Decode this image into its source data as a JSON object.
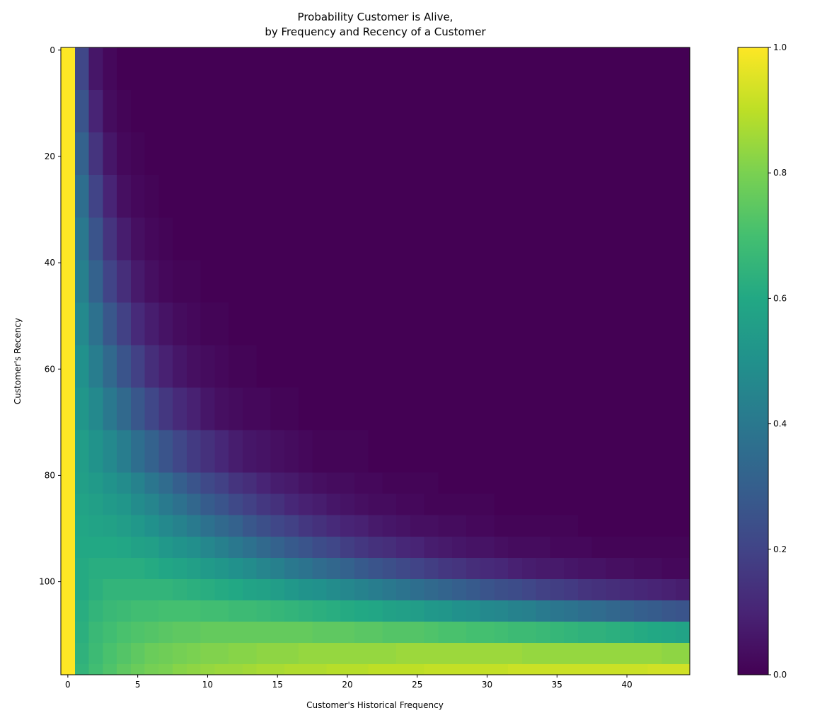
{
  "chart_data": {
    "type": "heatmap",
    "title": "Probability Customer is Alive,\nby Frequency and Recency of a Customer",
    "x_label": "Customer's Historical Frequency",
    "y_label": "Customer's Recency",
    "x": [
      0,
      1,
      2,
      3,
      4,
      5,
      6,
      7,
      8,
      9,
      10,
      11,
      12,
      13,
      14,
      15,
      16,
      17,
      18,
      19,
      20,
      21,
      22,
      23,
      24,
      25,
      26,
      27,
      28,
      29,
      30,
      31,
      32,
      33,
      34,
      35,
      36,
      37,
      38,
      39,
      40,
      41,
      42,
      43,
      44
    ],
    "y_bins": [
      -0.5,
      7.5,
      15.5,
      23.5,
      31.5,
      39.5,
      47.5,
      55.5,
      63.5,
      71.5,
      79.5,
      83.5,
      87.5,
      91.5,
      95.5,
      99.5,
      103.5,
      107.5,
      111.5,
      115.5,
      117.5
    ],
    "xlim": [
      -0.5,
      44.5
    ],
    "ylim": [
      -0.5,
      117.5
    ],
    "y_inverted": true,
    "xticks": [
      0,
      5,
      10,
      15,
      20,
      25,
      30,
      35,
      40
    ],
    "yticks": [
      0,
      20,
      40,
      60,
      80,
      100
    ],
    "colormap": [
      "#440154",
      "#482475",
      "#414487",
      "#355f8d",
      "#2a788e",
      "#21918c",
      "#22a884",
      "#44bf70",
      "#7ad151",
      "#bddf26",
      "#fde725"
    ],
    "colorbar": {
      "lim": [
        0,
        1
      ],
      "ticks": [
        {
          "value": 0,
          "label": "0.0"
        },
        {
          "value": 0.2,
          "label": "0.2"
        },
        {
          "value": 0.4,
          "label": "0.4"
        },
        {
          "value": 0.6,
          "label": "0.6"
        },
        {
          "value": 0.8,
          "label": "0.8"
        },
        {
          "value": 1,
          "label": "1.0"
        }
      ]
    },
    "values": [
      [
        1,
        0.21,
        0.06,
        0.02,
        0,
        0,
        0,
        0,
        0,
        0,
        0,
        0,
        0,
        0,
        0,
        0,
        0,
        0,
        0,
        0,
        0,
        0,
        0,
        0,
        0,
        0,
        0,
        0,
        0,
        0,
        0,
        0,
        0,
        0,
        0,
        0,
        0,
        0,
        0,
        0,
        0,
        0,
        0,
        0,
        0
      ],
      [
        1,
        0.26,
        0.1,
        0.03,
        0.01,
        0,
        0,
        0,
        0,
        0,
        0,
        0,
        0,
        0,
        0,
        0,
        0,
        0,
        0,
        0,
        0,
        0,
        0,
        0,
        0,
        0,
        0,
        0,
        0,
        0,
        0,
        0,
        0,
        0,
        0,
        0,
        0,
        0,
        0,
        0,
        0,
        0,
        0,
        0,
        0
      ],
      [
        1,
        0.31,
        0.15,
        0.06,
        0.02,
        0.01,
        0,
        0,
        0,
        0,
        0,
        0,
        0,
        0,
        0,
        0,
        0,
        0,
        0,
        0,
        0,
        0,
        0,
        0,
        0,
        0,
        0,
        0,
        0,
        0,
        0,
        0,
        0,
        0,
        0,
        0,
        0,
        0,
        0,
        0,
        0,
        0,
        0,
        0,
        0
      ],
      [
        1,
        0.36,
        0.2,
        0.1,
        0.04,
        0.02,
        0.01,
        0,
        0,
        0,
        0,
        0,
        0,
        0,
        0,
        0,
        0,
        0,
        0,
        0,
        0,
        0,
        0,
        0,
        0,
        0,
        0,
        0,
        0,
        0,
        0,
        0,
        0,
        0,
        0,
        0,
        0,
        0,
        0,
        0,
        0,
        0,
        0,
        0,
        0
      ],
      [
        1,
        0.4,
        0.26,
        0.15,
        0.08,
        0.04,
        0.02,
        0.01,
        0,
        0,
        0,
        0,
        0,
        0,
        0,
        0,
        0,
        0,
        0,
        0,
        0,
        0,
        0,
        0,
        0,
        0,
        0,
        0,
        0,
        0,
        0,
        0,
        0,
        0,
        0,
        0,
        0,
        0,
        0,
        0,
        0,
        0,
        0,
        0,
        0
      ],
      [
        1,
        0.43,
        0.31,
        0.2,
        0.13,
        0.07,
        0.04,
        0.02,
        0.01,
        0.01,
        0,
        0,
        0,
        0,
        0,
        0,
        0,
        0,
        0,
        0,
        0,
        0,
        0,
        0,
        0,
        0,
        0,
        0,
        0,
        0,
        0,
        0,
        0,
        0,
        0,
        0,
        0,
        0,
        0,
        0,
        0,
        0,
        0,
        0,
        0
      ],
      [
        1,
        0.47,
        0.37,
        0.27,
        0.19,
        0.12,
        0.08,
        0.05,
        0.03,
        0.02,
        0.01,
        0.01,
        0,
        0,
        0,
        0,
        0,
        0,
        0,
        0,
        0,
        0,
        0,
        0,
        0,
        0,
        0,
        0,
        0,
        0,
        0,
        0,
        0,
        0,
        0,
        0,
        0,
        0,
        0,
        0,
        0,
        0,
        0,
        0,
        0
      ],
      [
        1,
        0.5,
        0.42,
        0.34,
        0.26,
        0.19,
        0.13,
        0.09,
        0.06,
        0.04,
        0.03,
        0.02,
        0.01,
        0.01,
        0,
        0,
        0,
        0,
        0,
        0,
        0,
        0,
        0,
        0,
        0,
        0,
        0,
        0,
        0,
        0,
        0,
        0,
        0,
        0,
        0,
        0,
        0,
        0,
        0,
        0,
        0,
        0,
        0,
        0,
        0
      ],
      [
        1,
        0.52,
        0.47,
        0.4,
        0.34,
        0.27,
        0.21,
        0.16,
        0.12,
        0.09,
        0.06,
        0.04,
        0.03,
        0.02,
        0.02,
        0.01,
        0.01,
        0,
        0,
        0,
        0,
        0,
        0,
        0,
        0,
        0,
        0,
        0,
        0,
        0,
        0,
        0,
        0,
        0,
        0,
        0,
        0,
        0,
        0,
        0,
        0,
        0,
        0,
        0,
        0
      ],
      [
        1,
        0.55,
        0.51,
        0.47,
        0.42,
        0.36,
        0.31,
        0.26,
        0.21,
        0.17,
        0.14,
        0.11,
        0.08,
        0.06,
        0.05,
        0.04,
        0.03,
        0.02,
        0.01,
        0.01,
        0.01,
        0.01,
        0,
        0,
        0,
        0,
        0,
        0,
        0,
        0,
        0,
        0,
        0,
        0,
        0,
        0,
        0,
        0,
        0,
        0,
        0,
        0,
        0,
        0,
        0
      ],
      [
        1,
        0.56,
        0.54,
        0.51,
        0.48,
        0.44,
        0.39,
        0.35,
        0.3,
        0.26,
        0.22,
        0.19,
        0.15,
        0.13,
        0.1,
        0.08,
        0.07,
        0.05,
        0.04,
        0.03,
        0.03,
        0.02,
        0.02,
        0.01,
        0.01,
        0.01,
        0.01,
        0,
        0,
        0,
        0,
        0,
        0,
        0,
        0,
        0,
        0,
        0,
        0,
        0,
        0,
        0,
        0,
        0,
        0
      ],
      [
        1,
        0.58,
        0.56,
        0.54,
        0.52,
        0.48,
        0.45,
        0.41,
        0.37,
        0.33,
        0.29,
        0.26,
        0.22,
        0.19,
        0.16,
        0.14,
        0.11,
        0.09,
        0.08,
        0.06,
        0.05,
        0.04,
        0.03,
        0.03,
        0.02,
        0.02,
        0.01,
        0.01,
        0.01,
        0.01,
        0.01,
        0,
        0,
        0,
        0,
        0,
        0,
        0,
        0,
        0,
        0,
        0,
        0,
        0,
        0
      ],
      [
        1,
        0.59,
        0.58,
        0.57,
        0.55,
        0.53,
        0.5,
        0.47,
        0.44,
        0.41,
        0.37,
        0.34,
        0.31,
        0.27,
        0.24,
        0.21,
        0.19,
        0.16,
        0.14,
        0.12,
        0.1,
        0.09,
        0.07,
        0.06,
        0.05,
        0.04,
        0.04,
        0.03,
        0.03,
        0.02,
        0.02,
        0.01,
        0.01,
        0.01,
        0.01,
        0.01,
        0.01,
        0,
        0,
        0,
        0,
        0,
        0,
        0,
        0
      ],
      [
        1,
        0.6,
        0.6,
        0.6,
        0.59,
        0.57,
        0.56,
        0.53,
        0.51,
        0.49,
        0.46,
        0.43,
        0.4,
        0.37,
        0.34,
        0.31,
        0.28,
        0.26,
        0.23,
        0.21,
        0.18,
        0.16,
        0.14,
        0.13,
        0.11,
        0.1,
        0.08,
        0.07,
        0.06,
        0.05,
        0.05,
        0.04,
        0.03,
        0.03,
        0.03,
        0.02,
        0.02,
        0.02,
        0.01,
        0.01,
        0.01,
        0.01,
        0.01,
        0.01,
        0.01
      ],
      [
        1,
        0.61,
        0.62,
        0.62,
        0.62,
        0.62,
        0.61,
        0.59,
        0.58,
        0.56,
        0.54,
        0.52,
        0.5,
        0.48,
        0.45,
        0.43,
        0.4,
        0.38,
        0.35,
        0.33,
        0.31,
        0.28,
        0.26,
        0.24,
        0.22,
        0.2,
        0.18,
        0.16,
        0.15,
        0.13,
        0.12,
        0.11,
        0.09,
        0.08,
        0.07,
        0.07,
        0.06,
        0.05,
        0.05,
        0.04,
        0.04,
        0.03,
        0.03,
        0.02,
        0.02
      ],
      [
        1,
        0.61,
        0.63,
        0.65,
        0.65,
        0.65,
        0.65,
        0.65,
        0.64,
        0.63,
        0.62,
        0.61,
        0.6,
        0.58,
        0.57,
        0.55,
        0.53,
        0.51,
        0.5,
        0.48,
        0.46,
        0.44,
        0.42,
        0.4,
        0.38,
        0.36,
        0.34,
        0.32,
        0.3,
        0.28,
        0.26,
        0.24,
        0.23,
        0.21,
        0.19,
        0.18,
        0.17,
        0.15,
        0.14,
        0.13,
        0.12,
        0.11,
        0.1,
        0.09,
        0.08
      ],
      [
        1,
        0.62,
        0.65,
        0.67,
        0.68,
        0.69,
        0.69,
        0.7,
        0.7,
        0.7,
        0.69,
        0.69,
        0.68,
        0.68,
        0.67,
        0.66,
        0.65,
        0.64,
        0.63,
        0.62,
        0.61,
        0.6,
        0.59,
        0.57,
        0.56,
        0.55,
        0.53,
        0.52,
        0.5,
        0.49,
        0.47,
        0.46,
        0.44,
        0.43,
        0.41,
        0.39,
        0.38,
        0.36,
        0.35,
        0.33,
        0.32,
        0.3,
        0.29,
        0.27,
        0.26
      ],
      [
        1,
        0.63,
        0.67,
        0.69,
        0.71,
        0.72,
        0.73,
        0.74,
        0.75,
        0.75,
        0.76,
        0.76,
        0.76,
        0.76,
        0.76,
        0.76,
        0.76,
        0.76,
        0.75,
        0.75,
        0.75,
        0.74,
        0.74,
        0.73,
        0.73,
        0.73,
        0.72,
        0.71,
        0.71,
        0.7,
        0.7,
        0.69,
        0.68,
        0.68,
        0.67,
        0.66,
        0.65,
        0.64,
        0.64,
        0.63,
        0.62,
        0.61,
        0.6,
        0.59,
        0.58
      ],
      [
        1,
        0.64,
        0.68,
        0.71,
        0.73,
        0.75,
        0.77,
        0.78,
        0.79,
        0.8,
        0.81,
        0.81,
        0.82,
        0.82,
        0.83,
        0.83,
        0.83,
        0.84,
        0.84,
        0.84,
        0.84,
        0.84,
        0.84,
        0.84,
        0.85,
        0.85,
        0.85,
        0.85,
        0.85,
        0.85,
        0.85,
        0.85,
        0.85,
        0.84,
        0.84,
        0.84,
        0.84,
        0.84,
        0.84,
        0.84,
        0.84,
        0.84,
        0.84,
        0.83,
        0.83
      ],
      [
        1,
        0.65,
        0.69,
        0.72,
        0.75,
        0.77,
        0.79,
        0.8,
        0.82,
        0.83,
        0.84,
        0.85,
        0.85,
        0.86,
        0.87,
        0.87,
        0.88,
        0.88,
        0.88,
        0.89,
        0.89,
        0.89,
        0.9,
        0.9,
        0.9,
        0.9,
        0.91,
        0.91,
        0.91,
        0.91,
        0.91,
        0.91,
        0.92,
        0.92,
        0.92,
        0.92,
        0.92,
        0.92,
        0.92,
        0.92,
        0.92,
        0.92,
        0.93,
        0.93,
        0.93
      ]
    ]
  }
}
